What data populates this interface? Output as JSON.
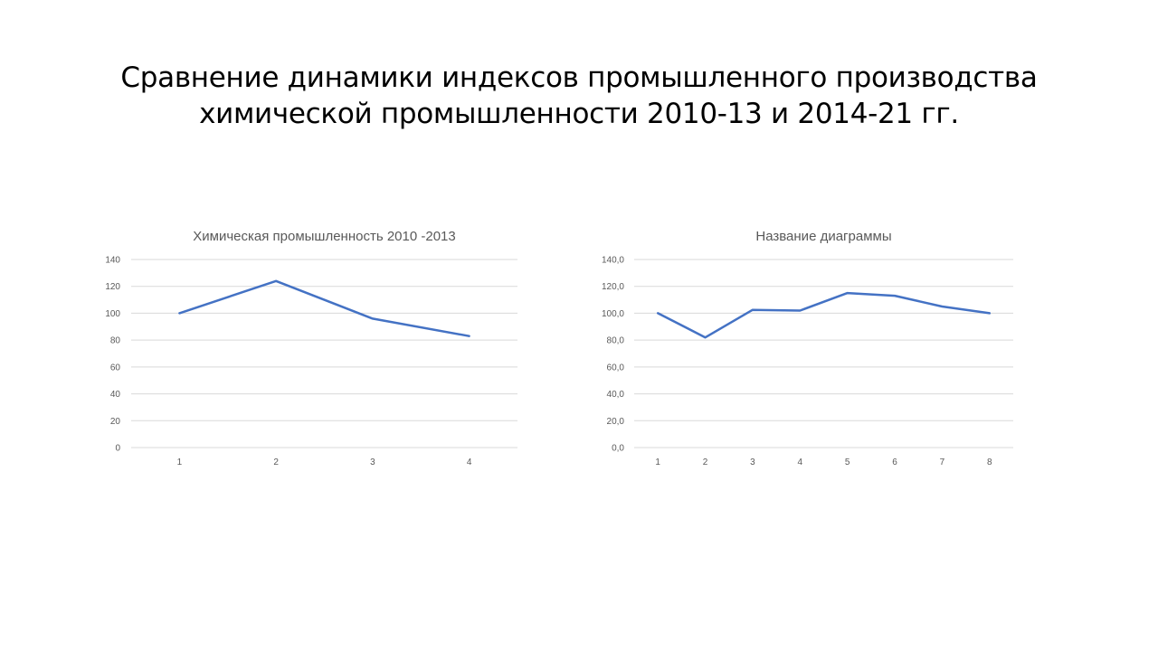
{
  "slide": {
    "title_line1": "Сравнение динамики индексов промышленного производства",
    "title_line2": "химической промышленности 2010-13 и 2014-21 гг."
  },
  "chart_data": [
    {
      "type": "line",
      "title": "Химическая промышленность 2010 -2013",
      "categories": [
        "1",
        "2",
        "3",
        "4"
      ],
      "series": [
        {
          "values": [
            100,
            124,
            96,
            83
          ]
        }
      ],
      "ylim": [
        0,
        140
      ],
      "yticks": [
        "0",
        "20",
        "40",
        "60",
        "80",
        "100",
        "120",
        "140"
      ],
      "grid": true,
      "color": "#4472C4"
    },
    {
      "type": "line",
      "title": "Название диаграммы",
      "categories": [
        "1",
        "2",
        "3",
        "4",
        "5",
        "6",
        "7",
        "8"
      ],
      "series": [
        {
          "values": [
            100,
            82,
            102.5,
            102,
            115,
            113,
            105,
            100
          ]
        }
      ],
      "ylim": [
        0,
        140
      ],
      "yticks": [
        "0,0",
        "20,0",
        "40,0",
        "60,0",
        "80,0",
        "100,0",
        "120,0",
        "140,0"
      ],
      "grid": true,
      "color": "#4472C4"
    }
  ]
}
